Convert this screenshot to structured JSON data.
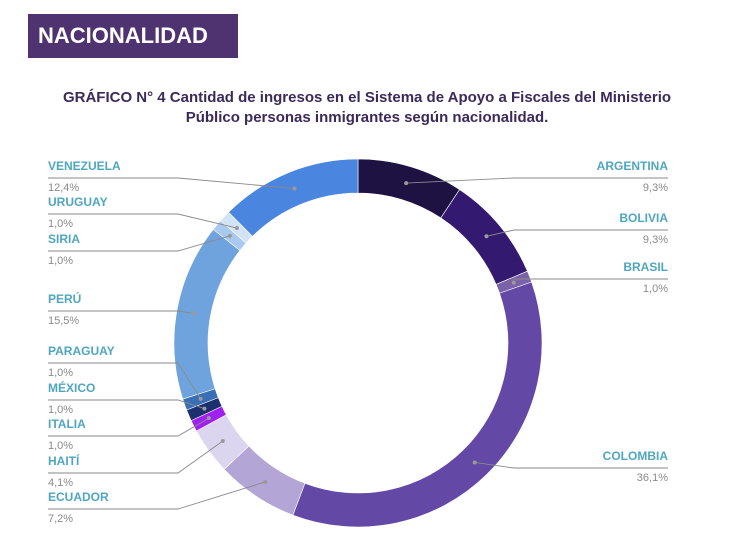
{
  "header": {
    "title": "NACIONALIDAD"
  },
  "chart_data": {
    "type": "pie",
    "title": "GRÁFICO N° 4 Cantidad de ingresos en el Sistema de Apoyo a Fiscales del Ministerio Público personas inmigrantes según nacionalidad.",
    "title_line1": "GRÁFICO N° 4 Cantidad de ingresos en el Sistema de Apoyo a Fiscales del Ministerio",
    "title_line2": "Público personas inmigrantes según nacionalidad.",
    "donut": true,
    "slices": [
      {
        "name": "ARGENTINA",
        "value": 9.3,
        "label": "9,3%",
        "color": "#1e1242"
      },
      {
        "name": "BOLIVIA",
        "value": 9.3,
        "label": "9,3%",
        "color": "#33196f"
      },
      {
        "name": "BRASIL",
        "value": 1.0,
        "label": "1,0%",
        "color": "#7b62a8"
      },
      {
        "name": "COLOMBIA",
        "value": 36.1,
        "label": "36,1%",
        "color": "#6349a5"
      },
      {
        "name": "ECUADOR",
        "value": 7.2,
        "label": "7,2%",
        "color": "#b3a6d6"
      },
      {
        "name": "HAITÍ",
        "value": 4.1,
        "label": "4,1%",
        "color": "#dcd5ef"
      },
      {
        "name": "ITALIA",
        "value": 1.0,
        "label": "1,0%",
        "color": "#a020f0"
      },
      {
        "name": "MÉXICO",
        "value": 1.0,
        "label": "1,0%",
        "color": "#1c2f6e"
      },
      {
        "name": "PARAGUAY",
        "value": 1.0,
        "label": "1,0%",
        "color": "#3b6fb5"
      },
      {
        "name": "PERÚ",
        "value": 15.5,
        "label": "15,5%",
        "color": "#6fa3de"
      },
      {
        "name": "SIRIA",
        "value": 1.0,
        "label": "1,0%",
        "color": "#a9c9ef"
      },
      {
        "name": "URUGUAY",
        "value": 1.0,
        "label": "1,0%",
        "color": "#d3e3f6"
      },
      {
        "name": "VENEZUELA",
        "value": 12.4,
        "label": "12,4%",
        "color": "#4a86e0"
      }
    ],
    "legend": "callout labels beside slices"
  }
}
